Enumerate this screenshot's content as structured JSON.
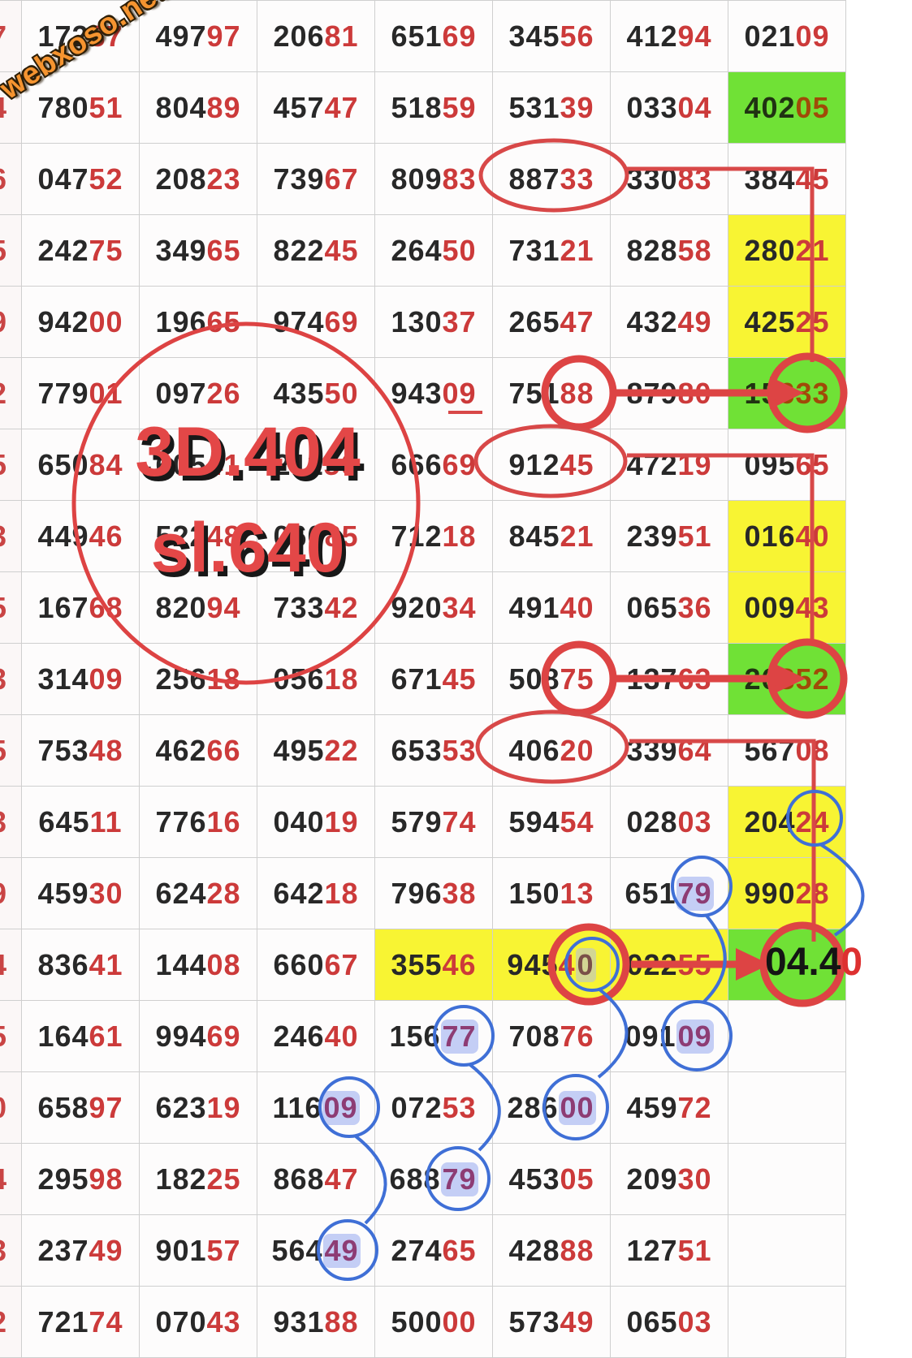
{
  "watermark": "webxoso.net",
  "big_note": {
    "line1": "3D.404",
    "line2": "sl.640"
  },
  "result_text": {
    "black": "04.4",
    "red": "0"
  },
  "colors": {
    "highlight_green": "#70e136",
    "highlight_yellow": "#f8f433",
    "number_black": "#282828",
    "number_red": "#cc3a3a",
    "annotation_red": "#dd4444",
    "annotation_blue": "#3f6fd6",
    "highlight_lavender": "#bac6f3"
  },
  "table": {
    "left_digits": [
      "7",
      "4",
      "6",
      "5",
      "9",
      "2",
      "5",
      "3",
      "5",
      "3",
      "5",
      "3",
      "9",
      "4",
      "5",
      "0",
      "4",
      "3",
      "2"
    ],
    "rows": [
      {
        "cells": [
          {
            "v": "17237"
          },
          {
            "v": "49797"
          },
          {
            "v": "20681"
          },
          {
            "v": "65169"
          },
          {
            "v": "34556"
          },
          {
            "v": "41294"
          },
          {
            "v": "02109"
          }
        ]
      },
      {
        "cells": [
          {
            "v": "78051"
          },
          {
            "v": "80489"
          },
          {
            "v": "45747"
          },
          {
            "v": "51859"
          },
          {
            "v": "53139"
          },
          {
            "v": "03304"
          },
          {
            "v": "40205",
            "bg": "g"
          }
        ]
      },
      {
        "cells": [
          {
            "v": "04752"
          },
          {
            "v": "20823"
          },
          {
            "v": "73967"
          },
          {
            "v": "80983"
          },
          {
            "v": "88733"
          },
          {
            "v": "33083"
          },
          {
            "v": "38445"
          }
        ]
      },
      {
        "cells": [
          {
            "v": "24275"
          },
          {
            "v": "34965"
          },
          {
            "v": "82245"
          },
          {
            "v": "26450"
          },
          {
            "v": "73121"
          },
          {
            "v": "82858"
          },
          {
            "v": "28021",
            "bg": "y"
          }
        ]
      },
      {
        "cells": [
          {
            "v": "94200"
          },
          {
            "v": "19665"
          },
          {
            "v": "97469"
          },
          {
            "v": "13037"
          },
          {
            "v": "26547"
          },
          {
            "v": "43249"
          },
          {
            "v": "42525",
            "bg": "y"
          }
        ]
      },
      {
        "cells": [
          {
            "v": "77901"
          },
          {
            "v": "09726"
          },
          {
            "v": "43550"
          },
          {
            "v": "94309"
          },
          {
            "v": "75188"
          },
          {
            "v": "87980"
          },
          {
            "v": "15633",
            "bg": "g",
            "split": 2
          }
        ]
      },
      {
        "cells": [
          {
            "v": "65084"
          },
          {
            "v": "60541"
          },
          {
            "v": "21156"
          },
          {
            "v": "66669"
          },
          {
            "v": "91245"
          },
          {
            "v": "47219"
          },
          {
            "v": "09565"
          }
        ]
      },
      {
        "cells": [
          {
            "v": "44946"
          },
          {
            "v": "52248"
          },
          {
            "v": "06085"
          },
          {
            "v": "71218"
          },
          {
            "v": "84521"
          },
          {
            "v": "23951"
          },
          {
            "v": "01640",
            "bg": "y"
          }
        ]
      },
      {
        "cells": [
          {
            "v": "16768"
          },
          {
            "v": "82094"
          },
          {
            "v": "73342"
          },
          {
            "v": "92034"
          },
          {
            "v": "49140"
          },
          {
            "v": "06536"
          },
          {
            "v": "00943",
            "bg": "y"
          }
        ]
      },
      {
        "cells": [
          {
            "v": "31409"
          },
          {
            "v": "25618"
          },
          {
            "v": "05618"
          },
          {
            "v": "67145"
          },
          {
            "v": "50875"
          },
          {
            "v": "13763"
          },
          {
            "v": "26852",
            "bg": "g",
            "split": 2
          }
        ]
      },
      {
        "cells": [
          {
            "v": "75348"
          },
          {
            "v": "46266"
          },
          {
            "v": "49522"
          },
          {
            "v": "65353"
          },
          {
            "v": "40620"
          },
          {
            "v": "33964"
          },
          {
            "v": "56708"
          }
        ]
      },
      {
        "cells": [
          {
            "v": "64511"
          },
          {
            "v": "77616"
          },
          {
            "v": "04019"
          },
          {
            "v": "57974"
          },
          {
            "v": "59454"
          },
          {
            "v": "02803"
          },
          {
            "v": "20424",
            "bg": "y"
          }
        ]
      },
      {
        "cells": [
          {
            "v": "45930"
          },
          {
            "v": "62428"
          },
          {
            "v": "64218"
          },
          {
            "v": "79638"
          },
          {
            "v": "15013"
          },
          {
            "v": "65179",
            "hl": "p2"
          },
          {
            "v": "99028",
            "bg": "y"
          }
        ]
      },
      {
        "cells": [
          {
            "v": "83641"
          },
          {
            "v": "14408"
          },
          {
            "v": "66067"
          },
          {
            "v": "35546",
            "bg": "y"
          },
          {
            "v": "94540",
            "bg": "y",
            "hl": "g1"
          },
          {
            "v": "02255",
            "bg": "y"
          },
          {
            "v": "",
            "bg": "g"
          }
        ]
      },
      {
        "cells": [
          {
            "v": "16461"
          },
          {
            "v": "99469"
          },
          {
            "v": "24640"
          },
          {
            "v": "15677",
            "hl": "p2"
          },
          {
            "v": "70876"
          },
          {
            "v": "09109",
            "hl": "p2"
          },
          {
            "v": ""
          }
        ]
      },
      {
        "cells": [
          {
            "v": "65897"
          },
          {
            "v": "62319"
          },
          {
            "v": "11609",
            "hl": "p2"
          },
          {
            "v": "07253"
          },
          {
            "v": "28600",
            "hl": "p2"
          },
          {
            "v": "45972"
          },
          {
            "v": ""
          }
        ]
      },
      {
        "cells": [
          {
            "v": "29598"
          },
          {
            "v": "18225"
          },
          {
            "v": "86847"
          },
          {
            "v": "68879",
            "hl": "p2"
          },
          {
            "v": "45305"
          },
          {
            "v": "20930"
          },
          {
            "v": ""
          }
        ]
      },
      {
        "cells": [
          {
            "v": "23749"
          },
          {
            "v": "90157"
          },
          {
            "v": "56449",
            "hl": "p2"
          },
          {
            "v": "27465"
          },
          {
            "v": "42888"
          },
          {
            "v": "12751"
          },
          {
            "v": ""
          }
        ]
      },
      {
        "cells": [
          {
            "v": "72174"
          },
          {
            "v": "07043"
          },
          {
            "v": "93188"
          },
          {
            "v": "50000"
          },
          {
            "v": "57349"
          },
          {
            "v": "06503"
          },
          {
            "v": ""
          }
        ]
      }
    ]
  }
}
